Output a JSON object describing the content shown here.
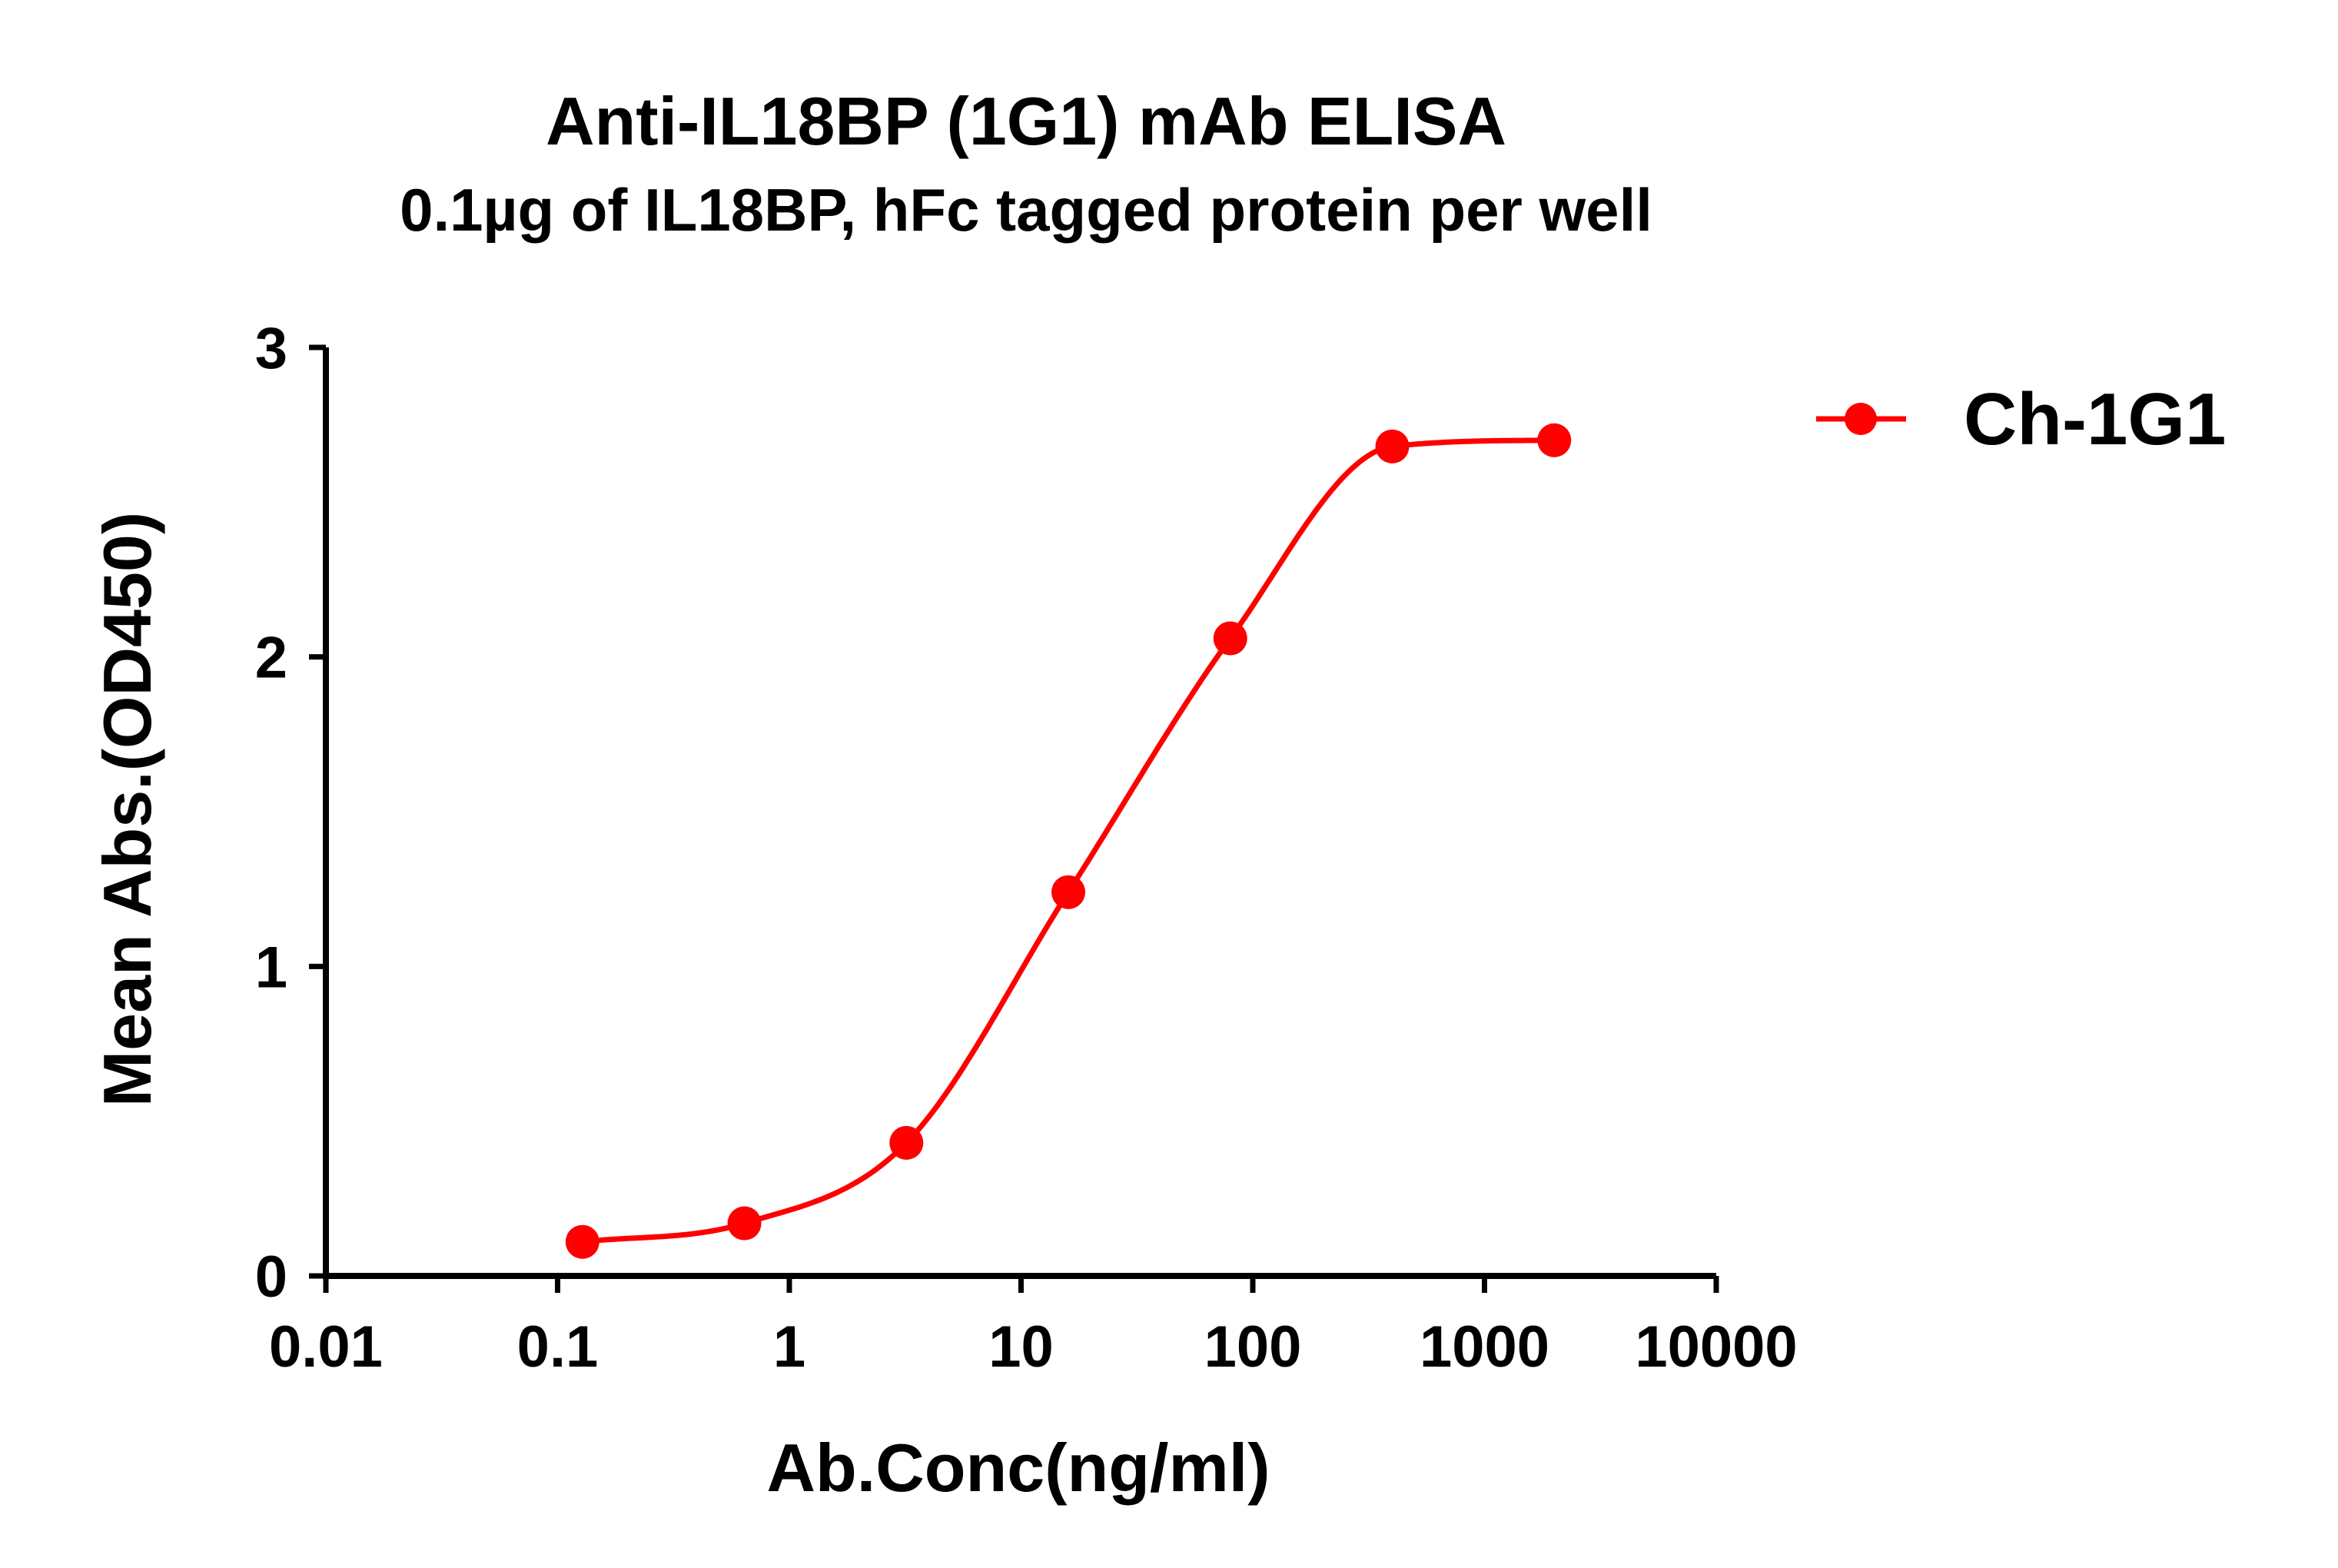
{
  "chart_data": {
    "type": "scatter",
    "title": "Anti-IL18BP (1G1) mAb ELISA",
    "subtitle": "0.1µg of IL18BP, hFc tagged protein per well",
    "xlabel": "Ab.Conc(ng/ml)",
    "ylabel": "Mean Abs.(OD450)",
    "xscale": "log",
    "xlim": [
      0.01,
      10000
    ],
    "ylim": [
      0,
      3
    ],
    "x_ticks": [
      0.01,
      0.1,
      1,
      10,
      100,
      1000,
      10000
    ],
    "x_tick_labels": [
      "0.01",
      "0.1",
      "1",
      "10",
      "100",
      "1000",
      "10000"
    ],
    "y_ticks": [
      0,
      1,
      2,
      3
    ],
    "y_tick_labels": [
      "0",
      "1",
      "2",
      "3"
    ],
    "grid": false,
    "legend_position": "top-right",
    "series": [
      {
        "name": "Ch-1G1",
        "color": "#ff0000",
        "marker": "circle",
        "fit": "sigmoidal-4PL",
        "x": [
          0.128,
          0.64,
          3.2,
          16,
          80,
          400,
          2000
        ],
        "y": [
          0.11,
          0.17,
          0.43,
          1.24,
          2.06,
          2.68,
          2.7
        ]
      }
    ]
  }
}
